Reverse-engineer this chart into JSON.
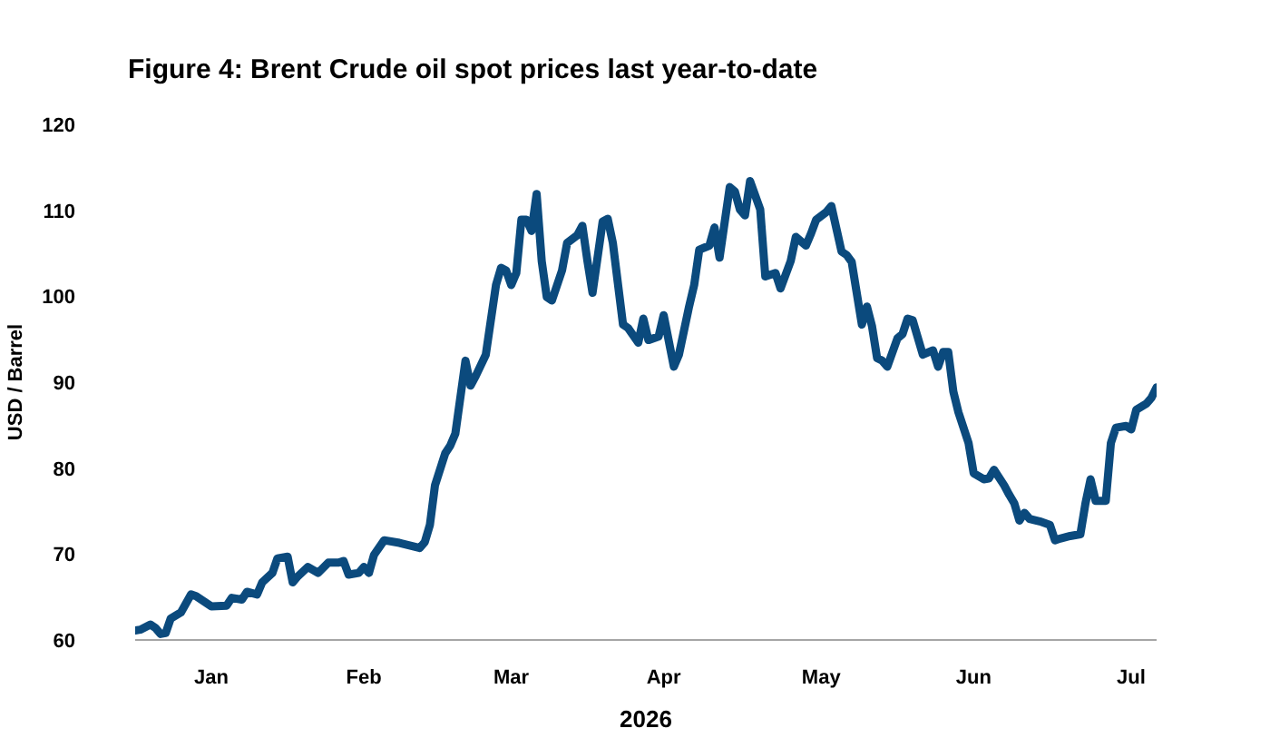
{
  "chart_data": {
    "type": "line",
    "title": "Figure 4: Brent Crude oil spot prices last year-to-date",
    "xlabel": "2026",
    "ylabel": "USD / Barrel",
    "color": "#0b4a7d",
    "line_style": "solid",
    "xlim": [
      "2026-01-01",
      "2026-07-21"
    ],
    "ylim": [
      60,
      120
    ],
    "xticks": [
      {
        "value": "2026-01-16",
        "label": "Jan"
      },
      {
        "value": "2026-02-15",
        "label": "Feb"
      },
      {
        "value": "2026-03-16",
        "label": "Mar"
      },
      {
        "value": "2026-04-15",
        "label": "Apr"
      },
      {
        "value": "2026-05-16",
        "label": "May"
      },
      {
        "value": "2026-06-15",
        "label": "Jun"
      },
      {
        "value": "2026-07-16",
        "label": "Jul"
      }
    ],
    "yticks": [
      60,
      70,
      80,
      90,
      100,
      110,
      120
    ],
    "x": [
      "2026-01-01",
      "2026-01-02",
      "2026-01-04",
      "2026-01-05",
      "2026-01-06",
      "2026-01-07",
      "2026-01-08",
      "2026-01-10",
      "2026-01-12",
      "2026-01-13",
      "2026-01-16",
      "2026-01-19",
      "2026-01-20",
      "2026-01-22",
      "2026-01-23",
      "2026-01-25",
      "2026-01-26",
      "2026-01-28",
      "2026-01-29",
      "2026-01-31",
      "2026-02-01",
      "2026-02-02",
      "2026-02-04",
      "2026-02-06",
      "2026-02-08",
      "2026-02-10",
      "2026-02-11",
      "2026-02-12",
      "2026-02-14",
      "2026-02-15",
      "2026-02-16",
      "2026-02-17",
      "2026-02-19",
      "2026-02-22",
      "2026-02-26",
      "2026-02-27",
      "2026-02-28",
      "2026-03-01",
      "2026-03-03",
      "2026-03-04",
      "2026-03-05",
      "2026-03-07",
      "2026-03-08",
      "2026-03-09",
      "2026-03-11",
      "2026-03-13",
      "2026-03-14",
      "2026-03-15",
      "2026-03-16",
      "2026-03-17",
      "2026-03-18",
      "2026-03-19",
      "2026-03-20",
      "2026-03-21",
      "2026-03-22",
      "2026-03-23",
      "2026-03-24",
      "2026-03-26",
      "2026-03-27",
      "2026-03-29",
      "2026-03-30",
      "2026-03-31",
      "2026-04-01",
      "2026-04-03",
      "2026-04-04",
      "2026-04-05",
      "2026-04-07",
      "2026-04-08",
      "2026-04-10",
      "2026-04-11",
      "2026-04-12",
      "2026-04-14",
      "2026-04-15",
      "2026-04-17",
      "2026-04-18",
      "2026-04-20",
      "2026-04-21",
      "2026-04-22",
      "2026-04-24",
      "2026-04-25",
      "2026-04-26",
      "2026-04-28",
      "2026-04-29",
      "2026-04-30",
      "2026-05-01",
      "2026-05-02",
      "2026-05-04",
      "2026-05-05",
      "2026-05-07",
      "2026-05-08",
      "2026-05-10",
      "2026-05-11",
      "2026-05-13",
      "2026-05-14",
      "2026-05-15",
      "2026-05-17",
      "2026-05-18",
      "2026-05-20",
      "2026-05-21",
      "2026-05-22",
      "2026-05-24",
      "2026-05-25",
      "2026-05-26",
      "2026-05-27",
      "2026-05-28",
      "2026-05-29",
      "2026-05-31",
      "2026-06-01",
      "2026-06-02",
      "2026-06-03",
      "2026-06-05",
      "2026-06-07",
      "2026-06-08",
      "2026-06-09",
      "2026-06-10",
      "2026-06-11",
      "2026-06-12",
      "2026-06-14",
      "2026-06-15",
      "2026-06-17",
      "2026-06-18",
      "2026-06-19",
      "2026-06-21",
      "2026-06-22",
      "2026-06-23",
      "2026-06-24",
      "2026-06-25",
      "2026-06-26",
      "2026-06-28",
      "2026-06-30",
      "2026-07-01",
      "2026-07-02",
      "2026-07-04",
      "2026-07-06",
      "2026-07-07",
      "2026-07-08",
      "2026-07-09",
      "2026-07-11",
      "2026-07-12",
      "2026-07-13",
      "2026-07-15",
      "2026-07-16",
      "2026-07-17",
      "2026-07-19",
      "2026-07-20",
      "2026-07-21"
    ],
    "values": [
      61.1,
      61.2,
      61.8,
      61.4,
      60.7,
      60.8,
      62.5,
      63.2,
      65.3,
      65.1,
      63.9,
      64.0,
      64.9,
      64.7,
      65.6,
      65.3,
      66.7,
      67.8,
      69.5,
      69.7,
      66.7,
      67.4,
      68.5,
      67.8,
      69.0,
      69.0,
      69.2,
      67.6,
      67.8,
      68.5,
      67.8,
      69.9,
      71.6,
      71.3,
      70.7,
      71.4,
      73.4,
      78.0,
      81.7,
      82.6,
      84.0,
      92.5,
      89.6,
      90.7,
      93.2,
      101.3,
      103.3,
      103.0,
      101.3,
      102.7,
      108.9,
      108.9,
      107.6,
      111.9,
      104.1,
      99.9,
      99.5,
      103.0,
      106.2,
      107.1,
      108.2,
      104.1,
      100.4,
      108.7,
      109.0,
      106.2,
      96.7,
      96.3,
      94.6,
      97.4,
      94.9,
      95.3,
      97.8,
      91.8,
      93.2,
      98.8,
      101.3,
      105.4,
      105.9,
      108.0,
      104.5,
      112.7,
      112.2,
      110.1,
      109.4,
      113.4,
      110.1,
      102.3,
      102.7,
      100.9,
      104.1,
      106.9,
      105.9,
      107.3,
      108.9,
      109.8,
      110.5,
      105.2,
      104.8,
      104.0,
      96.7,
      98.8,
      96.5,
      92.8,
      92.5,
      91.8,
      95.1,
      95.6,
      97.4,
      97.2,
      93.2,
      93.7,
      91.8,
      93.5,
      93.5,
      88.9,
      86.5,
      82.9,
      79.4,
      78.7,
      78.8,
      79.8,
      78.0,
      76.9,
      75.9,
      73.9,
      74.8,
      74.1,
      73.8,
      73.4,
      71.6,
      71.8,
      72.1,
      72.3,
      75.9,
      78.7,
      76.2,
      76.2,
      82.9,
      84.7,
      84.9,
      84.5,
      86.8,
      87.5,
      88.2,
      89.4
    ]
  }
}
